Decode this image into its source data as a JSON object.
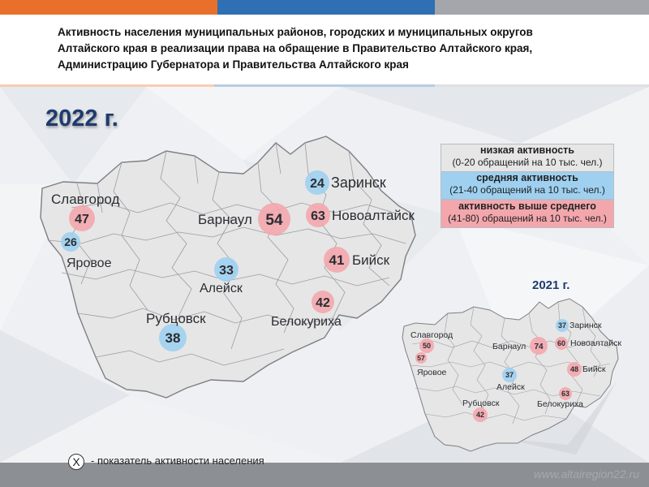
{
  "header": {
    "title": "Активность населения муниципальных районов, городских и муниципальных округов Алтайского края в реализации права на обращение в Правительство Алтайского края, Администрацию Губернатора и Правительства Алтайского края"
  },
  "colors": {
    "bar_orange": "#e8702a",
    "bar_blue": "#2f6fb3",
    "bar_gray": "#a3a6aa",
    "low": "#e6e6e6",
    "medium": "#9fd0f0",
    "above_average": "#f3a7ad",
    "title_blue": "#1f3a6d"
  },
  "main_map": {
    "year": "2022 г.",
    "markers": [
      {
        "city": "Заринск",
        "value": "24",
        "level": "medium"
      },
      {
        "city": "Славгород",
        "value": "47",
        "level": "above_average"
      },
      {
        "city": "Барнаул",
        "value": "54",
        "level": "above_average"
      },
      {
        "city": "Новоалтайск",
        "value": "63",
        "level": "above_average"
      },
      {
        "city": "Яровое",
        "value": "26",
        "level": "medium"
      },
      {
        "city": "Бийск",
        "value": "41",
        "level": "above_average"
      },
      {
        "city": "Алейск",
        "value": "33",
        "level": "medium"
      },
      {
        "city": "Белокуриха",
        "value": "42",
        "level": "above_average"
      },
      {
        "city": "Рубцовск",
        "value": "38",
        "level": "medium"
      }
    ]
  },
  "mini_map": {
    "year": "2021 г.",
    "markers": [
      {
        "city": "Заринск",
        "value": "37",
        "level": "medium"
      },
      {
        "city": "Славгород",
        "value": "50",
        "level": "above_average"
      },
      {
        "city": "Барнаул",
        "value": "74",
        "level": "above_average"
      },
      {
        "city": "Новоалтайск",
        "value": "60",
        "level": "above_average"
      },
      {
        "city": "Яровое",
        "value": "57",
        "level": "above_average"
      },
      {
        "city": "Алейск",
        "value": "37",
        "level": "medium"
      },
      {
        "city": "Бийск",
        "value": "48",
        "level": "above_average"
      },
      {
        "city": "Белокуриха",
        "value": "63",
        "level": "above_average"
      },
      {
        "city": "Рубцовск",
        "value": "42",
        "level": "above_average"
      }
    ]
  },
  "legend": [
    {
      "title": "низкая активность",
      "subtitle": "(0-20 обращений на 10 тыс. чел.)",
      "level": "low"
    },
    {
      "title": "средняя активность",
      "subtitle": "(21-40 обращений на 10 тыс. чел.)",
      "level": "medium"
    },
    {
      "title": "активность выше среднего",
      "subtitle": "(41-80) обращений на 10 тыс. чел.)",
      "level": "above_average"
    }
  ],
  "note": {
    "symbol": "X",
    "text": "- показатель активности населения"
  },
  "footer": {
    "url": "www.altairegion22.ru"
  }
}
